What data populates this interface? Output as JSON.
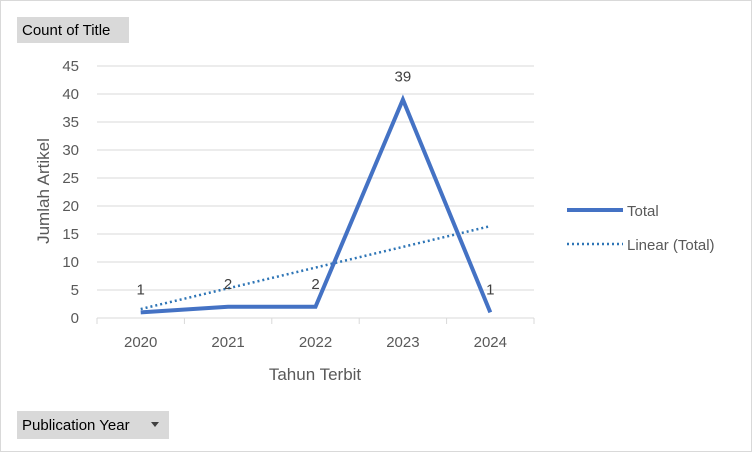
{
  "pivot": {
    "value_field": "Count of Title",
    "axis_field": "Publication Year"
  },
  "colors": {
    "series": "#4472c4",
    "trend": "#2e75b6",
    "grid": "#d9d9d9",
    "text": "#595959"
  },
  "chart_data": {
    "type": "line",
    "xlabel": "Tahun Terbit",
    "ylabel": "Jumlah Artikel",
    "categories": [
      "2020",
      "2021",
      "2022",
      "2023",
      "2024"
    ],
    "ylim": [
      0,
      45
    ],
    "yticks": [
      0,
      5,
      10,
      15,
      20,
      25,
      30,
      35,
      40,
      45
    ],
    "grid": true,
    "legend_position": "right",
    "series": [
      {
        "name": "Total",
        "values": [
          1,
          2,
          2,
          39,
          1
        ],
        "data_labels": [
          "1",
          "2",
          "2",
          "39",
          "1"
        ]
      }
    ],
    "trendline": {
      "name": "Linear (Total)",
      "type": "linear",
      "values": [
        1.6,
        5.3,
        9.0,
        12.7,
        16.4
      ]
    }
  }
}
